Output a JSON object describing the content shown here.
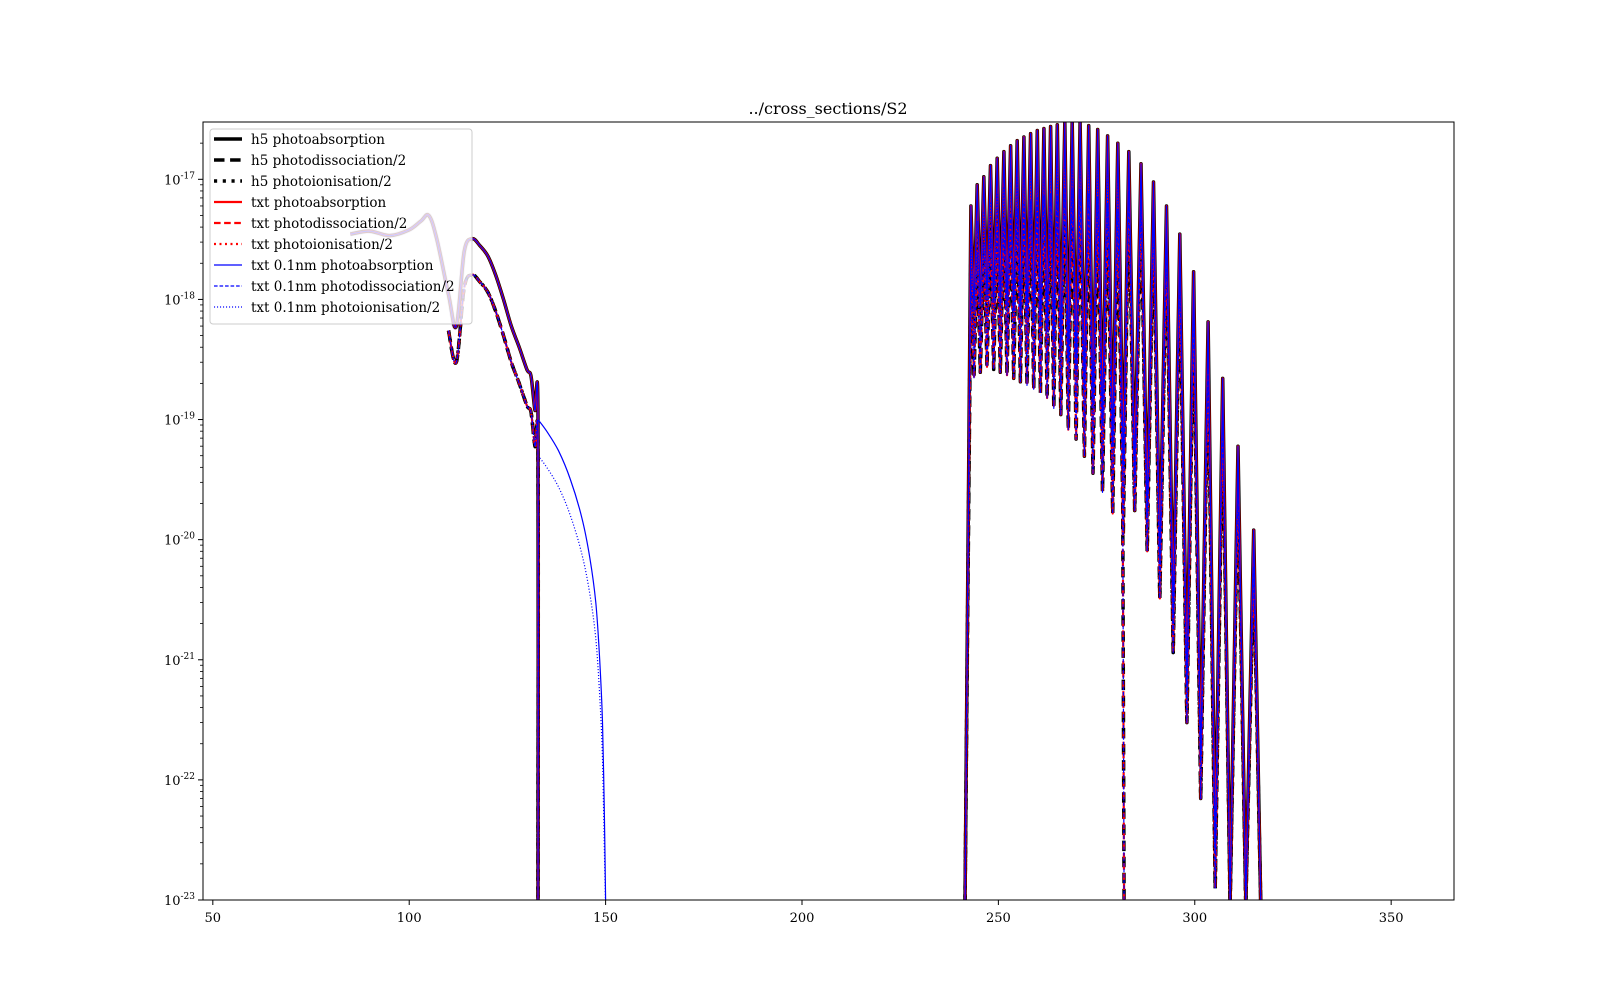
{
  "chart_data": {
    "type": "line",
    "title": "../cross_sections/S2",
    "xlabel": "",
    "ylabel": "",
    "xlim": [
      47.5,
      366
    ],
    "ylim": [
      1e-23,
      3e-17
    ],
    "yscale": "log",
    "xticks": [
      50,
      100,
      150,
      200,
      250,
      300,
      350
    ],
    "xtick_labels": [
      "50",
      "100",
      "150",
      "200",
      "250",
      "300",
      "350"
    ],
    "yticks": [
      {
        "value": 1e-23,
        "mantissa": "10",
        "exp": "-23"
      },
      {
        "value": 1e-22,
        "mantissa": "10",
        "exp": "-22"
      },
      {
        "value": 1e-21,
        "mantissa": "10",
        "exp": "-21"
      },
      {
        "value": 1e-20,
        "mantissa": "10",
        "exp": "-20"
      },
      {
        "value": 1e-19,
        "mantissa": "10",
        "exp": "-19"
      },
      {
        "value": 1e-18,
        "mantissa": "10",
        "exp": "-18"
      },
      {
        "value": 1e-17,
        "mantissa": "10",
        "exp": "-17"
      }
    ],
    "grid": false,
    "legend_position": "upper-left",
    "series": [
      {
        "name": "h5 photoabsorption",
        "color": "#000000",
        "dash": "solid",
        "width": 3.5,
        "kind": "abs",
        "end": 132.8
      },
      {
        "name": "h5 photodissociation/2",
        "color": "#000000",
        "dash": "dashed",
        "width": 3.5,
        "kind": "dis",
        "end": 132.8
      },
      {
        "name": "h5 photoionisation/2",
        "color": "#000000",
        "dash": "dotted",
        "width": 3.5,
        "kind": "ion",
        "end": 132.8
      },
      {
        "name": "txt photoabsorption",
        "color": "#ff0000",
        "dash": "solid",
        "width": 2.2,
        "kind": "abs",
        "end": 132.8
      },
      {
        "name": "txt photodissociation/2",
        "color": "#ff0000",
        "dash": "dashed",
        "width": 2.2,
        "kind": "dis",
        "end": 132.8
      },
      {
        "name": "txt photoionisation/2",
        "color": "#ff0000",
        "dash": "dotted",
        "width": 2.2,
        "kind": "ion",
        "end": 132.8
      },
      {
        "name": "txt 0.1nm photoabsorption",
        "color": "#0000ff",
        "dash": "solid",
        "width": 1.2,
        "kind": "abs",
        "end": 150
      },
      {
        "name": "txt 0.1nm photodissociation/2",
        "color": "#0000ff",
        "dash": "dashed",
        "width": 1.2,
        "kind": "dis",
        "end": 132.8
      },
      {
        "name": "txt 0.1nm photoionisation/2",
        "color": "#0000ff",
        "dash": "dotted",
        "width": 1.2,
        "kind": "ion",
        "end": 150
      }
    ],
    "uv_band": {
      "x": [
        85,
        90,
        95,
        100,
        103,
        105,
        107,
        110,
        112,
        114,
        116,
        118,
        120,
        122,
        124,
        126,
        128,
        130,
        131,
        132,
        132.8
      ],
      "y": [
        3.5e-18,
        3.7e-18,
        3.4e-18,
        3.8e-18,
        4.5e-18,
        5e-18,
        3.2e-18,
        1.1e-18,
        6e-19,
        2.5e-18,
        3.2e-18,
        2.8e-18,
        2.3e-18,
        1.6e-18,
        1e-18,
        6e-19,
        4e-19,
        2.6e-19,
        2.3e-19,
        1.2e-19,
        1e-19
      ]
    },
    "tail": {
      "x": [
        132.8,
        135,
        138,
        141,
        144,
        146,
        147.5,
        148.5,
        149.2,
        149.7,
        150
      ],
      "y": [
        1e-19,
        8e-20,
        5.5e-20,
        3.2e-20,
        1.5e-20,
        7e-21,
        3e-21,
        1e-21,
        3e-22,
        5e-23,
        1e-23
      ]
    },
    "band_peaks": {
      "x": [
        243,
        244.6,
        246.3,
        248,
        249.7,
        251.4,
        253.1,
        254.8,
        256.5,
        258.2,
        259.9,
        261.6,
        263.3,
        265,
        266.9,
        268.8,
        270.8,
        273,
        275.3,
        277.8,
        280.4,
        283.2,
        286.3,
        289.5,
        292.8,
        296.2,
        299.7,
        303.4,
        307.1,
        311.0,
        315.0
      ],
      "y": [
        6e-18,
        9e-18,
        1.05e-17,
        1.3e-17,
        1.5e-17,
        1.7e-17,
        1.9e-17,
        2.1e-17,
        2.25e-17,
        2.4e-17,
        2.55e-17,
        2.65e-17,
        2.75e-17,
        2.85e-17,
        2.95e-17,
        3e-17,
        3e-17,
        2.8e-17,
        2.6e-17,
        2.3e-17,
        2e-17,
        1.7e-17,
        1.35e-17,
        9.5e-18,
        6e-18,
        3.5e-18,
        1.7e-18,
        6.5e-19,
        2.2e-19,
        6e-20,
        1.2e-20
      ]
    },
    "band_troughs": {
      "x": [
        243.8,
        245.4,
        247.1,
        248.8,
        250.5,
        252.2,
        253.9,
        255.6,
        257.3,
        259.0,
        260.7,
        262.4,
        264.1,
        265.9,
        267.8,
        269.8,
        271.9,
        274.1,
        276.5,
        279.1,
        281.8,
        284.7,
        287.9,
        291.1,
        294.5,
        298.0,
        301.5,
        305.2,
        309.0,
        313.0
      ],
      "y": [
        8e-19,
        9e-19,
        1e-18,
        9.5e-19,
        9e-19,
        8.5e-19,
        8e-19,
        7.5e-19,
        7e-19,
        6.5e-19,
        6e-19,
        5.5e-19,
        4.5e-19,
        4e-19,
        3e-19,
        2.5e-19,
        1.8e-19,
        1.3e-19,
        9e-20,
        6e-20,
        4e-20,
        3.5e-20,
        1.6e-20,
        6.5e-21,
        2.3e-21,
        6e-22,
        1.4e-22,
        2.5e-23,
        1e-23,
        1e-23
      ]
    },
    "band_start": 241.5,
    "band_end": 316.8,
    "dissociation_start": 282.0,
    "ionisation_fraction": 0.5
  }
}
